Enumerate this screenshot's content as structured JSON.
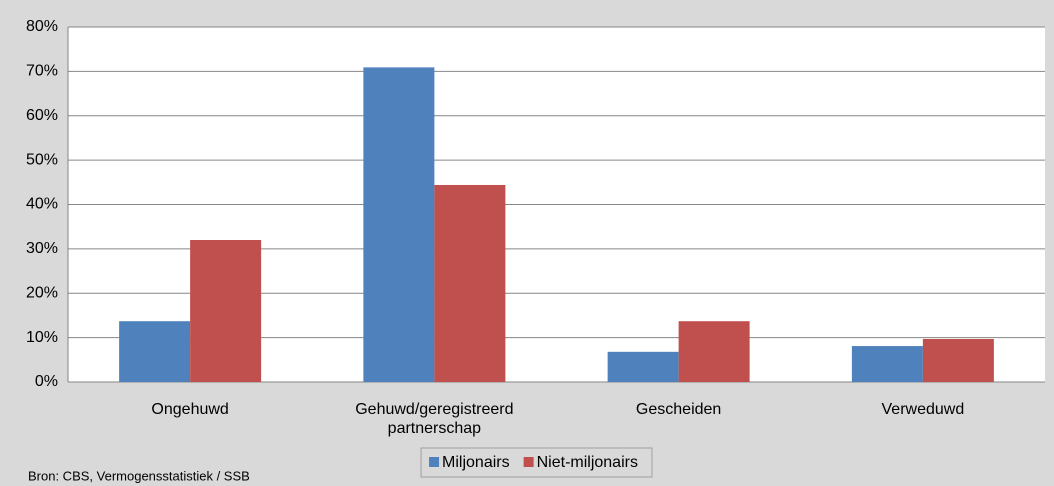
{
  "chart_data": {
    "type": "bar",
    "categories": [
      "Ongehuwd",
      "Gehuwd/geregistreerd partnerschap",
      "Gescheiden",
      "Verweduwd"
    ],
    "series": [
      {
        "name": "Miljonairs",
        "color": "#4f81bd",
        "values": [
          13.7,
          70.9,
          6.8,
          8.1
        ]
      },
      {
        "name": "Niet-miljonairs",
        "color": "#c0504d",
        "values": [
          32.0,
          44.4,
          13.7,
          9.7
        ]
      }
    ],
    "ylim": [
      0,
      80
    ],
    "yticks": [
      {
        "value": 0,
        "label": "0%"
      },
      {
        "value": 10,
        "label": "10%"
      },
      {
        "value": 20,
        "label": "20%"
      },
      {
        "value": 30,
        "label": "30%"
      },
      {
        "value": 40,
        "label": "40%"
      },
      {
        "value": 50,
        "label": "50%"
      },
      {
        "value": 60,
        "label": "60%"
      },
      {
        "value": 70,
        "label": "70%"
      },
      {
        "value": 80,
        "label": "80%"
      }
    ],
    "grid": true,
    "legend": "bottom",
    "source": "Bron: CBS, Vermogensstatistiek / SSB"
  }
}
